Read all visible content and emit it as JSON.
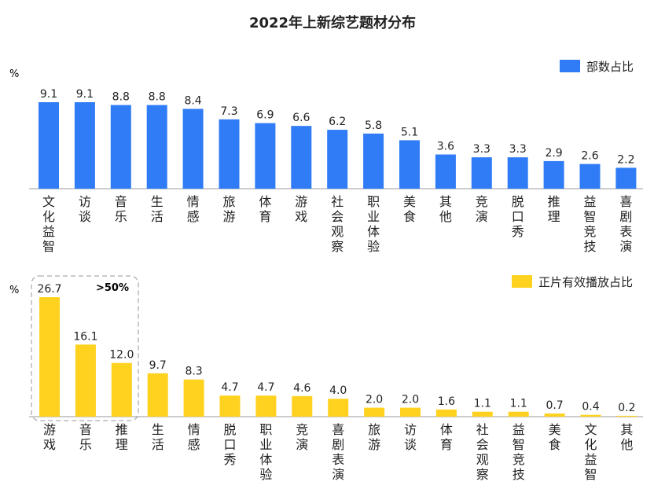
{
  "title": "2022年上新综艺题材分布",
  "colors": {
    "top": "#2F7CF6",
    "bottom": "#FFD21F",
    "axis": "#9a9a9a",
    "text": "#222222",
    "box": "#b8b8b8"
  },
  "chart_data": [
    {
      "type": "bar",
      "unit_label": "%",
      "legend": "部数占比",
      "legend_position": "top-right",
      "categories": [
        "文化益智",
        "访谈",
        "音乐",
        "生活",
        "情感",
        "旅游",
        "体育",
        "游戏",
        "社会观察",
        "职业体验",
        "美食",
        "其他",
        "竞演",
        "脱口秀",
        "推理",
        "益智竞技",
        "喜剧表演"
      ],
      "series": [
        {
          "name": "部数占比",
          "values": [
            9.1,
            9.1,
            8.8,
            8.8,
            8.4,
            7.3,
            6.9,
            6.6,
            6.2,
            5.8,
            5.1,
            3.6,
            3.3,
            3.3,
            2.9,
            2.6,
            2.2
          ]
        }
      ],
      "value_labels": [
        "9.1",
        "9.1",
        "8.8",
        "8.8",
        "8.4",
        "7.3",
        "6.9",
        "6.6",
        "6.2",
        "5.8",
        "5.1",
        "3.6",
        "3.3",
        "3.3",
        "2.9",
        "2.6",
        "2.2"
      ],
      "ylim": [
        0,
        10
      ]
    },
    {
      "type": "bar",
      "unit_label": "%",
      "legend": "正片有效播放占比",
      "legend_position": "top-right",
      "annotation": ">50%",
      "categories": [
        "游戏",
        "音乐",
        "推理",
        "生活",
        "情感",
        "脱口秀",
        "职业体验",
        "竞演",
        "喜剧表演",
        "旅游",
        "访谈",
        "体育",
        "社会观察",
        "益智竞技",
        "美食",
        "文化益智",
        "其他"
      ],
      "series": [
        {
          "name": "正片有效播放占比",
          "values": [
            26.7,
            16.1,
            12.0,
            9.7,
            8.3,
            4.7,
            4.7,
            4.6,
            4.0,
            2.0,
            2.0,
            1.6,
            1.1,
            1.1,
            0.7,
            0.4,
            0.2
          ]
        }
      ],
      "value_labels": [
        "26.7",
        "16.1",
        "12.0",
        "9.7",
        "8.3",
        "4.7",
        "4.7",
        "4.6",
        "4.0",
        "2.0",
        "2.0",
        "1.6",
        "1.1",
        "1.1",
        "0.7",
        "0.4",
        "0.2"
      ],
      "ylim": [
        0,
        28
      ]
    }
  ]
}
